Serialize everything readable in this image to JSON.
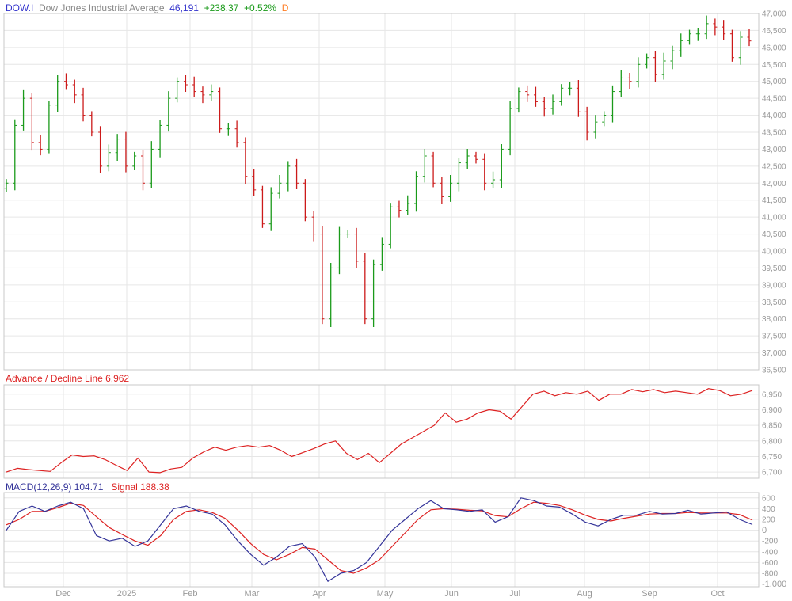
{
  "header": {
    "symbol": "DOW.I",
    "name": "Dow Jones Industrial Average",
    "last": "46,191",
    "change": "+238.37",
    "change_pct": "+0.52%",
    "period": "D"
  },
  "colors": {
    "symbol": "#3333cc",
    "name": "#888888",
    "up": "#1a9a1a",
    "down": "#cc1a1a",
    "period": "#ff7f27",
    "ad": "#dd2222",
    "macd": "#333399",
    "signal": "#dd2222"
  },
  "ad_panel": {
    "label": "Advance / Decline Line 6,962"
  },
  "macd_panel": {
    "label": "MACD(12,26,9) 104.71",
    "signal_label": "Signal 188.38"
  },
  "chart_data": [
    {
      "type": "bar",
      "title": "DOW.I Dow Jones Industrial Average",
      "ylim": [
        36500,
        47000
      ],
      "yticks": [
        "47,000",
        "46,500",
        "46,000",
        "45,500",
        "45,000",
        "44,500",
        "44,000",
        "43,500",
        "43,000",
        "42,500",
        "42,000",
        "41,500",
        "41,000",
        "40,500",
        "40,000",
        "39,500",
        "39,000",
        "38,500",
        "38,000",
        "37,500",
        "37,000",
        "36,500"
      ],
      "xticks": [
        "Dec",
        "2025",
        "Feb",
        "Mar",
        "Apr",
        "May",
        "Jun",
        "Jul",
        "Aug",
        "Sep",
        "Oct"
      ],
      "closes": [
        42000,
        43700,
        44500,
        43200,
        43000,
        44300,
        45000,
        44900,
        44600,
        44000,
        43500,
        42500,
        42900,
        43300,
        42500,
        42800,
        42000,
        43000,
        43700,
        44500,
        45000,
        44900,
        44700,
        44600,
        44700,
        43600,
        43600,
        43200,
        42200,
        41800,
        40800,
        41700,
        42000,
        42500,
        42000,
        41000,
        40500,
        38000,
        39500,
        40500,
        40500,
        39700,
        38000,
        39600,
        40200,
        41300,
        41200,
        41400,
        42200,
        42800,
        42000,
        41600,
        42000,
        42600,
        42800,
        42700,
        42000,
        42100,
        43000,
        44200,
        44700,
        44600,
        44400,
        44200,
        44400,
        44800,
        44800,
        44100,
        43500,
        43800,
        44000,
        44700,
        45100,
        45000,
        45500,
        45700,
        45200,
        45600,
        45900,
        46200,
        46400,
        46400,
        46700,
        46600,
        46400,
        45700,
        46300,
        46191
      ]
    },
    {
      "type": "line",
      "title": "Advance / Decline Line",
      "ylim": [
        6680,
        6980
      ],
      "yticks": [
        "6,950",
        "6,900",
        "6,850",
        "6,800",
        "6,750",
        "6,700"
      ],
      "values": [
        6700,
        6712,
        6708,
        6705,
        6702,
        6730,
        6755,
        6750,
        6752,
        6740,
        6722,
        6705,
        6745,
        6700,
        6698,
        6710,
        6715,
        6745,
        6765,
        6780,
        6770,
        6780,
        6785,
        6780,
        6785,
        6770,
        6750,
        6762,
        6775,
        6790,
        6800,
        6760,
        6740,
        6760,
        6730,
        6760,
        6790,
        6810,
        6830,
        6850,
        6890,
        6860,
        6870,
        6890,
        6900,
        6895,
        6870,
        6910,
        6950,
        6960,
        6945,
        6955,
        6950,
        6960,
        6930,
        6950,
        6950,
        6965,
        6958,
        6965,
        6955,
        6960,
        6955,
        6950,
        6968,
        6962,
        6945,
        6950,
        6962
      ]
    },
    {
      "type": "line",
      "title": "MACD(12,26,9)",
      "ylim": [
        -1050,
        700
      ],
      "yticks": [
        "600",
        "400",
        "200",
        "0",
        "-200",
        "-400",
        "-600",
        "-800",
        "-1,000"
      ],
      "series": [
        {
          "name": "MACD",
          "values": [
            0,
            350,
            450,
            350,
            450,
            520,
            400,
            -100,
            -200,
            -150,
            -300,
            -200,
            100,
            400,
            450,
            350,
            300,
            100,
            -200,
            -450,
            -650,
            -500,
            -300,
            -250,
            -500,
            -950,
            -800,
            -750,
            -600,
            -300,
            0,
            200,
            400,
            550,
            400,
            380,
            350,
            380,
            150,
            250,
            600,
            550,
            450,
            430,
            300,
            150,
            80,
            200,
            280,
            280,
            350,
            300,
            310,
            370,
            300,
            320,
            340,
            200,
            105
          ]
        },
        {
          "name": "Signal",
          "values": [
            100,
            200,
            350,
            350,
            420,
            500,
            460,
            250,
            50,
            -80,
            -200,
            -280,
            -100,
            200,
            350,
            380,
            330,
            220,
            0,
            -250,
            -450,
            -550,
            -450,
            -320,
            -350,
            -550,
            -750,
            -800,
            -700,
            -550,
            -300,
            -50,
            200,
            380,
            400,
            390,
            370,
            360,
            270,
            250,
            400,
            520,
            500,
            460,
            380,
            280,
            200,
            170,
            220,
            260,
            300,
            310,
            310,
            330,
            320,
            320,
            320,
            290,
            188
          ]
        }
      ]
    }
  ]
}
